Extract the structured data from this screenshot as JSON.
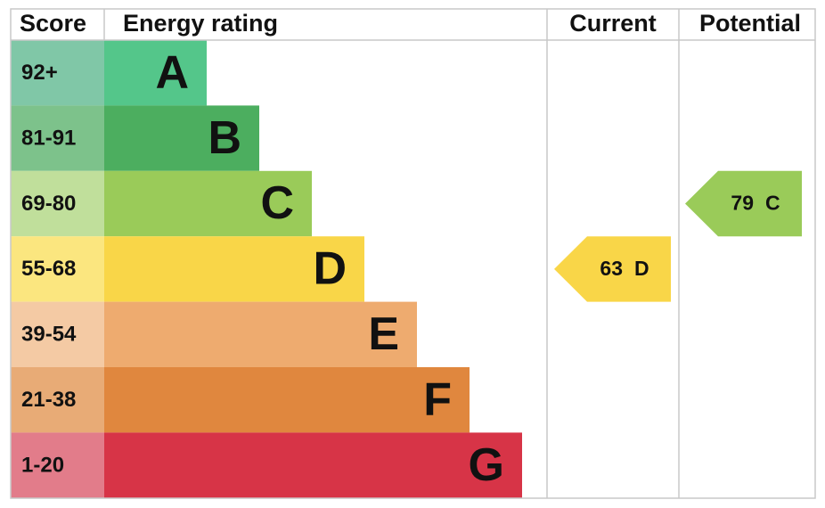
{
  "header": {
    "score": "Score",
    "rating": "Energy rating",
    "current": "Current",
    "potential": "Potential"
  },
  "rows": [
    {
      "score": "92+",
      "band": "A",
      "color": "#54c68a",
      "cell_color": "#80c7a7"
    },
    {
      "score": "81-91",
      "band": "B",
      "color": "#4cae5f",
      "cell_color": "#7dc28b"
    },
    {
      "score": "69-80",
      "band": "C",
      "color": "#9acb59",
      "cell_color": "#c0df9b"
    },
    {
      "score": "55-68",
      "band": "D",
      "color": "#f9d648",
      "cell_color": "#fbe67f"
    },
    {
      "score": "39-54",
      "band": "E",
      "color": "#eeab6f",
      "cell_color": "#f4caa4"
    },
    {
      "score": "21-38",
      "band": "F",
      "color": "#e0873e",
      "cell_color": "#e8ab76"
    },
    {
      "score": "1-20",
      "band": "G",
      "color": "#d73447",
      "cell_color": "#e27c8a"
    }
  ],
  "current": {
    "score": "63",
    "band": "D"
  },
  "potential": {
    "score": "79",
    "band": "C"
  }
}
